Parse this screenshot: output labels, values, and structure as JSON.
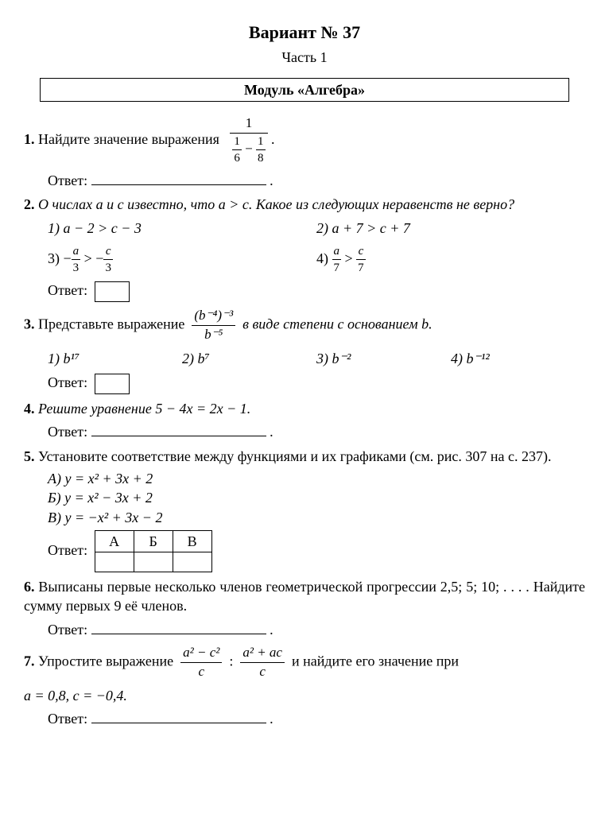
{
  "title": "Вариант № 37",
  "subtitle": "Часть 1",
  "module": "Модуль «Алгебра»",
  "answer_label": "Ответ:",
  "q1": {
    "num": "1.",
    "text_a": "Найдите значение выражения",
    "period": ".",
    "main_num": "1",
    "d1n": "1",
    "d1d": "6",
    "minus": "−",
    "d2n": "1",
    "d2d": "8"
  },
  "q2": {
    "num": "2.",
    "text": "О числах a и c известно, что a > c. Какое из следующих неравенств не верно?",
    "o1": "1) a − 2 > c − 3",
    "o2": "2) a + 7 > c + 7",
    "o3a": "3) −",
    "o3_an": "a",
    "o3_ad": "3",
    "o3_mid": " > −",
    "o3_cn": "c",
    "o3_cd": "3",
    "o4a": "4) ",
    "o4_an": "a",
    "o4_ad": "7",
    "o4_mid": " > ",
    "o4_cn": "c",
    "o4_cd": "7"
  },
  "q3": {
    "num": "3.",
    "text_a": "Представьте выражение",
    "text_b": "в виде степени с основанием b.",
    "frac_num": "(b⁻⁴)⁻³",
    "frac_den": "b⁻⁵",
    "o1": "1)  b¹⁷",
    "o2": "2)  b⁷",
    "o3": "3)  b⁻²",
    "o4": "4)  b⁻¹²"
  },
  "q4": {
    "num": "4.",
    "text": "Решите уравнение 5 − 4x = 2x − 1."
  },
  "q5": {
    "num": "5.",
    "text": "Установите соответствие между функциями и их графиками (см. рис. 307 на с. 237).",
    "a": "А) y = x² + 3x + 2",
    "b": "Б) y = x² − 3x + 2",
    "v": "В) y = −x² + 3x − 2",
    "hA": "А",
    "hB": "Б",
    "hV": "В"
  },
  "q6": {
    "num": "6.",
    "text": "Выписаны первые несколько членов геометрической прогрессии 2,5; 5; 10; . . . . Найдите сумму первых 9 её членов."
  },
  "q7": {
    "num": "7.",
    "text_a": "Упростите выражение",
    "text_b": "и найдите его значение при",
    "f1n": "a² − c²",
    "f1d": "c",
    "colon": ":",
    "f2n": "a² + ac",
    "f2d": "c",
    "cond": "a = 0,8, c = −0,4."
  }
}
